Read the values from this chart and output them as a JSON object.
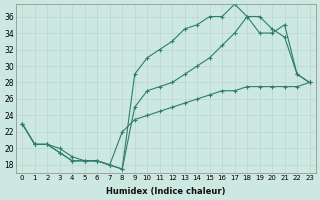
{
  "title": "",
  "xlabel": "Humidex (Indice chaleur)",
  "bg_color": "#cce8e0",
  "line_color": "#2e7d6e",
  "grid_color": "#b8d8d0",
  "xlim": [
    -0.5,
    23.5
  ],
  "ylim": [
    17,
    37.5
  ],
  "yticks": [
    18,
    20,
    22,
    24,
    26,
    28,
    30,
    32,
    34,
    36
  ],
  "xticks": [
    0,
    1,
    2,
    3,
    4,
    5,
    6,
    7,
    8,
    9,
    10,
    11,
    12,
    13,
    14,
    15,
    16,
    17,
    18,
    19,
    20,
    21,
    22,
    23
  ],
  "line1_x": [
    0,
    1,
    2,
    3,
    4,
    5,
    6,
    7,
    8,
    9,
    10,
    11,
    12,
    13,
    14,
    15,
    16,
    17,
    18,
    19,
    20,
    21,
    22,
    23
  ],
  "line1_y": [
    23,
    20.5,
    20.5,
    19.5,
    18.5,
    18.5,
    18.5,
    18,
    17.5,
    29,
    31,
    32,
    33,
    34.5,
    35,
    36,
    36,
    37.5,
    36,
    36,
    34.5,
    33.5,
    29,
    28
  ],
  "line2_x": [
    0,
    1,
    2,
    3,
    4,
    5,
    6,
    7,
    8,
    9,
    10,
    11,
    12,
    13,
    14,
    15,
    16,
    17,
    18,
    19,
    20,
    21,
    22,
    23
  ],
  "line2_y": [
    23,
    20.5,
    20.5,
    19.5,
    18.5,
    18.5,
    18.5,
    18,
    17.5,
    25,
    27,
    27.5,
    28,
    29,
    30,
    31,
    32.5,
    34,
    36,
    34,
    34,
    35,
    29,
    28
  ],
  "line3_x": [
    0,
    1,
    2,
    3,
    4,
    5,
    6,
    7,
    8,
    9,
    10,
    11,
    12,
    13,
    14,
    15,
    16,
    17,
    18,
    19,
    20,
    21,
    22,
    23
  ],
  "line3_y": [
    23,
    20.5,
    20.5,
    20,
    19,
    18.5,
    18.5,
    18,
    22,
    23.5,
    24,
    24.5,
    25,
    25.5,
    26,
    26.5,
    27,
    27,
    27.5,
    27.5,
    27.5,
    27.5,
    27.5,
    28
  ]
}
